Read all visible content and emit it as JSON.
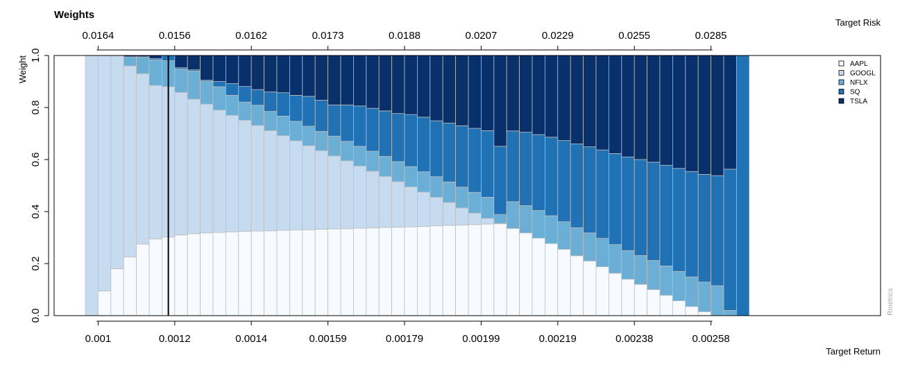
{
  "chart_data": {
    "type": "bar",
    "stacked": true,
    "title": "Weights",
    "ylabel": "Weight",
    "xlabel": "Target Return",
    "top_axis_label": "Target Risk",
    "ylim": [
      0,
      1
    ],
    "y_ticks": [
      "0.0",
      "0.2",
      "0.4",
      "0.6",
      "0.8",
      "1.0"
    ],
    "bottom_tick_labels": [
      "0.001",
      "0.0012",
      "0.0014",
      "0.00159",
      "0.00179",
      "0.00199",
      "0.00219",
      "0.00238",
      "0.00258"
    ],
    "top_tick_labels": [
      "0.0164",
      "0.0156",
      "0.0162",
      "0.0173",
      "0.0188",
      "0.0207",
      "0.0229",
      "0.0255",
      "0.0285"
    ],
    "tick_bar_indices": [
      1,
      7,
      13,
      19,
      25,
      31,
      37,
      43,
      49
    ],
    "marker_line_bar_index": 6,
    "grid": false,
    "legend_position": "top-right",
    "watermark": "Rmetrics",
    "series": [
      {
        "name": "AAPL",
        "color": "#F7FBFF",
        "values": [
          0.0,
          0.095,
          0.18,
          0.225,
          0.275,
          0.295,
          0.302,
          0.31,
          0.315,
          0.318,
          0.32,
          0.322,
          0.324,
          0.325,
          0.326,
          0.328,
          0.329,
          0.33,
          0.332,
          0.333,
          0.334,
          0.336,
          0.337,
          0.339,
          0.34,
          0.341,
          0.343,
          0.345,
          0.347,
          0.348,
          0.35,
          0.352,
          0.353,
          0.335,
          0.318,
          0.298,
          0.277,
          0.255,
          0.23,
          0.21,
          0.188,
          0.163,
          0.14,
          0.12,
          0.1,
          0.078,
          0.057,
          0.035,
          0.015,
          0.0,
          0.0,
          0.0
        ]
      },
      {
        "name": "GOOGL",
        "color": "#C6DBEF",
        "values": [
          1.0,
          0.905,
          0.82,
          0.735,
          0.655,
          0.59,
          0.578,
          0.548,
          0.517,
          0.495,
          0.47,
          0.448,
          0.427,
          0.406,
          0.385,
          0.364,
          0.343,
          0.323,
          0.302,
          0.281,
          0.261,
          0.239,
          0.218,
          0.196,
          0.175,
          0.154,
          0.132,
          0.11,
          0.088,
          0.066,
          0.044,
          0.022,
          0.002,
          0.0,
          0.0,
          0.0,
          0.0,
          0.0,
          0.0,
          0.0,
          0.0,
          0.0,
          0.0,
          0.0,
          0.0,
          0.0,
          0.0,
          0.0,
          0.0,
          0.0,
          0.0,
          0.0
        ]
      },
      {
        "name": "NFLX",
        "color": "#6BAED6",
        "values": [
          0.0,
          0.0,
          0.0,
          0.035,
          0.065,
          0.098,
          0.1,
          0.09,
          0.108,
          0.088,
          0.09,
          0.077,
          0.07,
          0.078,
          0.074,
          0.075,
          0.075,
          0.075,
          0.074,
          0.076,
          0.075,
          0.076,
          0.077,
          0.077,
          0.077,
          0.078,
          0.078,
          0.079,
          0.079,
          0.08,
          0.08,
          0.081,
          0.034,
          0.103,
          0.105,
          0.106,
          0.107,
          0.106,
          0.108,
          0.108,
          0.109,
          0.11,
          0.11,
          0.111,
          0.112,
          0.113,
          0.113,
          0.114,
          0.114,
          0.115,
          0.02,
          0.0
        ]
      },
      {
        "name": "SQ",
        "color": "#2171B5",
        "values": [
          0.0,
          0.0,
          0.0,
          0.0,
          0.0,
          0.005,
          0.02,
          0.005,
          0.005,
          0.004,
          0.02,
          0.045,
          0.06,
          0.06,
          0.075,
          0.09,
          0.1,
          0.115,
          0.12,
          0.12,
          0.14,
          0.155,
          0.165,
          0.175,
          0.185,
          0.2,
          0.21,
          0.215,
          0.226,
          0.236,
          0.246,
          0.256,
          0.262,
          0.272,
          0.282,
          0.292,
          0.302,
          0.312,
          0.322,
          0.331,
          0.34,
          0.35,
          0.36,
          0.369,
          0.378,
          0.387,
          0.396,
          0.405,
          0.414,
          0.423,
          0.543,
          1.0
        ]
      },
      {
        "name": "TSLA",
        "color": "#08306B",
        "values": [
          0.0,
          0.0,
          0.0,
          0.005,
          0.005,
          0.012,
          0.0,
          0.047,
          0.055,
          0.095,
          0.1,
          0.108,
          0.119,
          0.131,
          0.14,
          0.143,
          0.153,
          0.157,
          0.172,
          0.19,
          0.19,
          0.194,
          0.203,
          0.213,
          0.223,
          0.227,
          0.237,
          0.251,
          0.26,
          0.27,
          0.28,
          0.289,
          0.349,
          0.29,
          0.295,
          0.304,
          0.314,
          0.327,
          0.34,
          0.351,
          0.363,
          0.377,
          0.39,
          0.4,
          0.41,
          0.422,
          0.434,
          0.446,
          0.457,
          0.462,
          0.437,
          0.0
        ]
      }
    ]
  }
}
